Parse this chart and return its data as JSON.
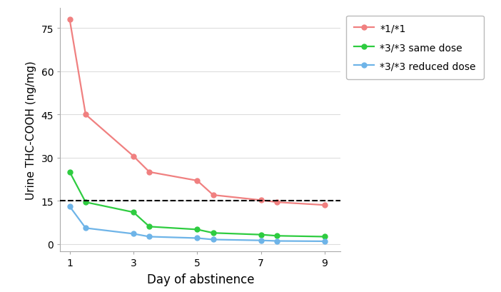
{
  "x": [
    1,
    1.5,
    3,
    3.5,
    5,
    5.5,
    7,
    7.5,
    9
  ],
  "y_red": [
    78,
    45,
    30.5,
    25,
    22,
    17,
    15.2,
    14.5,
    13.5
  ],
  "y_green": [
    25,
    14.5,
    11,
    6,
    5,
    3.8,
    3.2,
    2.8,
    2.5
  ],
  "y_blue": [
    13,
    5.5,
    3.5,
    2.5,
    2.0,
    1.5,
    1.2,
    1.0,
    0.9
  ],
  "color_red": "#F08080",
  "color_green": "#2ECC40",
  "color_blue": "#6EB4E8",
  "dashed_y": 15,
  "xlabel": "Day of abstinence",
  "ylabel": "Urine THC-COOH (ng/mg)",
  "legend_labels": [
    "*1/*1",
    "*3/*3 same dose",
    "*3/*3 reduced dose"
  ],
  "xlim": [
    0.7,
    9.5
  ],
  "ylim": [
    -2.5,
    82
  ],
  "yticks": [
    0,
    15,
    30,
    45,
    60,
    75
  ],
  "xticks": [
    1,
    3,
    5,
    7,
    9
  ],
  "xticklabels": [
    "1",
    "3",
    "5",
    "7",
    "9"
  ],
  "bg_color": "#FFFFFF",
  "grid_color": "#DDDDDD",
  "marker_size": 5,
  "linewidth": 1.6
}
